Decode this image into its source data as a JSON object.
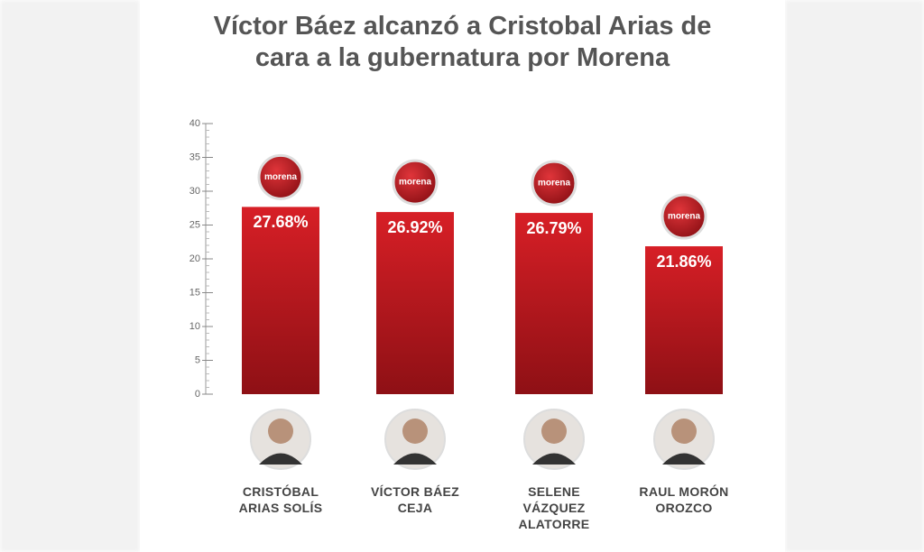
{
  "chart_data": {
    "type": "bar",
    "title": "Víctor Báez alcanzó a Cristobal Arias de cara a la gubernatura por Morena",
    "categories": [
      "CRISTÓBAL ARIAS SOLÍS",
      "VÍCTOR BÁEZ CEJA",
      "SELENE VÁZQUEZ ALATORRE",
      "RAUL MORÓN OROZCO"
    ],
    "values": [
      27.68,
      26.92,
      26.79,
      21.86
    ],
    "value_labels": [
      "27.68%",
      "26.92%",
      "26.79%",
      "21.86%"
    ],
    "badge_label": "morena",
    "color": "#c4161c",
    "ylim": [
      0,
      40
    ],
    "yticks": [
      0,
      5,
      10,
      15,
      20,
      25,
      30,
      35,
      40
    ],
    "grid": false
  }
}
